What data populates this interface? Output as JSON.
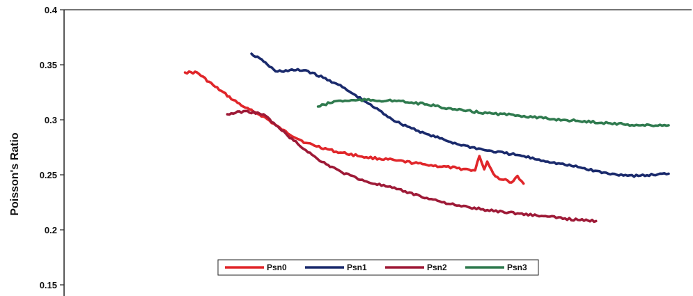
{
  "chart_data": {
    "type": "line",
    "title": "",
    "xlabel": "",
    "ylabel": "Poisson's Ratio",
    "ylim": [
      0.15,
      0.4
    ],
    "xlim": [
      0,
      100
    ],
    "yticks": [
      0.4,
      0.35,
      0.3,
      0.25,
      0.2,
      0.15
    ],
    "ytick_labels": [
      "0.4",
      "0.35",
      "0.3",
      "0.25",
      "0.2",
      "0.15"
    ],
    "grid": false,
    "legend_position": "bottom-center",
    "series": [
      {
        "name": "Psn0",
        "color": "#e0262a",
        "x": [
          20,
          22,
          25,
          28,
          30,
          33,
          36,
          40,
          45,
          50,
          55,
          60,
          65,
          68,
          68.7,
          69.5,
          70,
          71,
          72,
          73,
          74,
          75,
          76
        ],
        "y": [
          0.343,
          0.343,
          0.33,
          0.318,
          0.311,
          0.303,
          0.291,
          0.279,
          0.271,
          0.266,
          0.263,
          0.259,
          0.256,
          0.254,
          0.267,
          0.255,
          0.262,
          0.251,
          0.246,
          0.246,
          0.243,
          0.249,
          0.242
        ]
      },
      {
        "name": "Psn1",
        "color": "#1a2a6c",
        "x": [
          31,
          33,
          35,
          38,
          40,
          45,
          50,
          55,
          60,
          65,
          70,
          75,
          80,
          85,
          90,
          95,
          100
        ],
        "y": [
          0.36,
          0.353,
          0.344,
          0.345,
          0.345,
          0.333,
          0.316,
          0.298,
          0.287,
          0.278,
          0.272,
          0.268,
          0.262,
          0.257,
          0.251,
          0.249,
          0.251
        ]
      },
      {
        "name": "Psn2",
        "color": "#9e1a37",
        "x": [
          27,
          30,
          33,
          35,
          38,
          42,
          46,
          50,
          55,
          60,
          65,
          70,
          75,
          80,
          85,
          88
        ],
        "y": [
          0.305,
          0.308,
          0.305,
          0.295,
          0.281,
          0.264,
          0.252,
          0.244,
          0.237,
          0.229,
          0.222,
          0.218,
          0.215,
          0.212,
          0.209,
          0.208
        ]
      },
      {
        "name": "Psn3",
        "color": "#2f7a4e",
        "x": [
          42,
          45,
          50,
          55,
          60,
          65,
          70,
          75,
          80,
          85,
          90,
          95,
          100
        ],
        "y": [
          0.312,
          0.317,
          0.318,
          0.317,
          0.314,
          0.309,
          0.306,
          0.304,
          0.301,
          0.299,
          0.297,
          0.295,
          0.295
        ]
      }
    ]
  }
}
